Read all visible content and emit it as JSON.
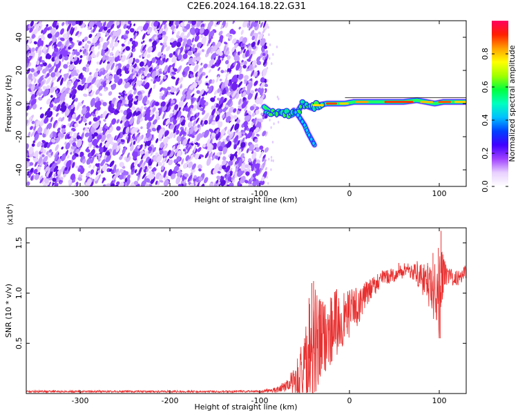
{
  "figure": {
    "title": "C2E6.2024.164.18.22.G31"
  },
  "chart_data": [
    {
      "type": "heatmap",
      "xlabel": "Height of straight line (km)",
      "ylabel": "Frequency (Hz)",
      "xlim": [
        -360,
        130
      ],
      "ylim": [
        -50,
        50
      ],
      "xticks": [
        -300,
        -200,
        -100,
        0,
        100
      ],
      "yticks": [
        -40,
        -20,
        0,
        20,
        40
      ],
      "noise_region_x": [
        -360,
        -92
      ],
      "signal_ridge": {
        "x": [
          -95,
          -88,
          -80,
          -72,
          -65,
          -58,
          -52,
          -45,
          -40,
          -35,
          -25,
          -15,
          -5,
          5,
          20,
          40,
          60,
          75,
          85,
          95,
          105,
          120,
          130
        ],
        "y": [
          -2,
          -5,
          -6,
          -5,
          -7,
          -5,
          0,
          -2,
          -3,
          -1,
          0,
          0,
          0,
          1,
          1,
          1,
          1,
          2,
          1,
          0,
          1,
          1,
          1
        ]
      },
      "signal_branch": {
        "x": [
          -62,
          -56,
          -50,
          -46,
          -42,
          -39
        ],
        "y": [
          -4,
          -8,
          -13,
          -18,
          -22,
          -25
        ]
      },
      "colorbar": {
        "label": "Normalized spectral amplitude",
        "ticks": [
          0.0,
          0.2,
          0.4,
          0.6,
          0.8
        ],
        "range": [
          0,
          1
        ],
        "colors": [
          "#ffffff",
          "#e8d0ff",
          "#a040ff",
          "#4000ff",
          "#0040ff",
          "#00c0ff",
          "#00ffc0",
          "#00ff40",
          "#a0ff00",
          "#ffff00",
          "#ffa000",
          "#ff2000",
          "#ff0060"
        ]
      }
    },
    {
      "type": "line",
      "xlabel": "Height of straight line (km)",
      "ylabel": "SNR (10 * v/v)",
      "exponent_label": "(x10",
      "exponent_power": "4",
      "exponent_close": ")",
      "xlim": [
        -360,
        130
      ],
      "ylim": [
        0,
        1.65
      ],
      "xticks": [
        -300,
        -200,
        -100,
        0,
        100
      ],
      "yticks": [
        0.5,
        1.0,
        1.5
      ],
      "ytick_labels": [
        "0.5",
        "1.0",
        "1.5"
      ],
      "series": [
        {
          "color": "#e83030",
          "envelope": {
            "x": [
              -360,
              -200,
              -100,
              -80,
              -70,
              -60,
              -50,
              -45,
              -40,
              -35,
              -30,
              -25,
              -20,
              -15,
              -10,
              -5,
              0,
              5,
              10,
              15,
              20,
              25,
              30,
              35,
              40,
              45,
              50,
              55,
              60,
              65,
              70,
              75,
              80,
              85,
              90,
              95,
              100,
              102,
              105,
              110,
              115,
              120,
              125,
              130
            ],
            "base": [
              0.02,
              0.02,
              0.02,
              0.04,
              0.08,
              0.15,
              0.25,
              0.35,
              0.45,
              0.5,
              0.55,
              0.6,
              0.65,
              0.7,
              0.72,
              0.75,
              0.8,
              0.85,
              0.88,
              0.95,
              1.0,
              1.05,
              1.1,
              1.15,
              1.15,
              1.17,
              1.18,
              1.2,
              1.22,
              1.25,
              1.22,
              1.2,
              1.15,
              1.1,
              1.05,
              1.0,
              0.95,
              1.2,
              1.2,
              1.18,
              1.15,
              1.15,
              1.18,
              1.22
            ],
            "amp": [
              0.01,
              0.01,
              0.01,
              0.03,
              0.06,
              0.15,
              0.35,
              0.55,
              0.65,
              0.55,
              0.4,
              0.35,
              0.35,
              0.35,
              0.3,
              0.25,
              0.25,
              0.2,
              0.2,
              0.15,
              0.12,
              0.1,
              0.1,
              0.08,
              0.08,
              0.07,
              0.07,
              0.07,
              0.08,
              0.08,
              0.1,
              0.12,
              0.15,
              0.18,
              0.22,
              0.3,
              0.45,
              0.4,
              0.15,
              0.1,
              0.08,
              0.08,
              0.08,
              0.08
            ]
          },
          "peaks": {
            "x": [
              -50,
              -45,
              -42,
              -40,
              -32,
              -20,
              -12,
              -2,
              55,
              87,
              93,
              99,
              101,
              102
            ],
            "y": [
              0.55,
              0.95,
              1.1,
              1.12,
              0.92,
              0.95,
              0.95,
              0.95,
              1.3,
              1.3,
              1.4,
              1.45,
              0.55,
              1.62
            ]
          }
        }
      ]
    }
  ]
}
